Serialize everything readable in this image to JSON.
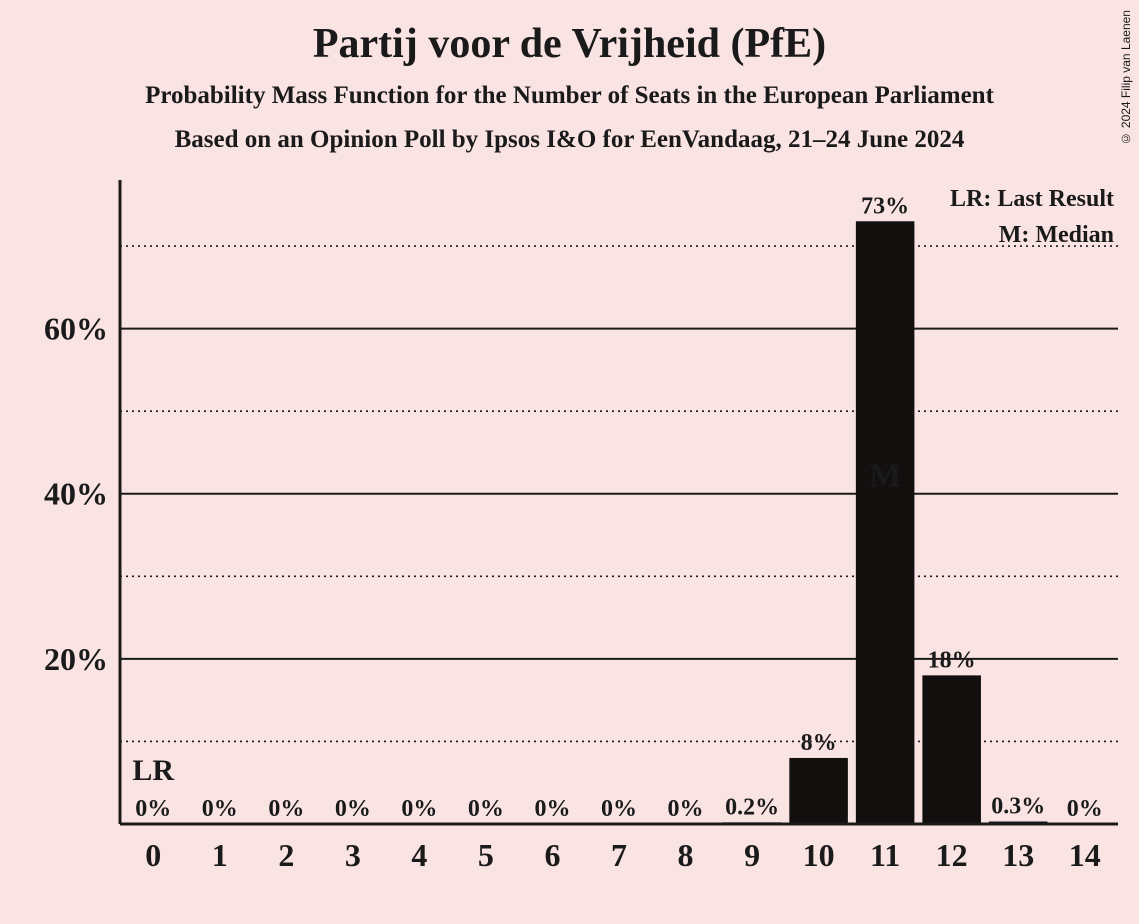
{
  "title": "Partij voor de Vrijheid (PfE)",
  "subtitle1": "Probability Mass Function for the Number of Seats in the European Parliament",
  "subtitle2": "Based on an Opinion Poll by Ipsos I&O for EenVandaag, 21–24 June 2024",
  "copyright": "© 2024 Filip van Laenen",
  "legend": {
    "lr": "LR: Last Result",
    "m": "M: Median"
  },
  "chart": {
    "type": "bar",
    "background_color": "#fae3e3",
    "bar_color": "#120f0e",
    "axis_color": "#1a1a1a",
    "gridline_color": "#1a1a1a",
    "median_text_color": "#fae3e3",
    "axis_width": 3,
    "major_grid_width": 2,
    "minor_grid_dash": "2,4",
    "x_categories": [
      "0",
      "1",
      "2",
      "3",
      "4",
      "5",
      "6",
      "7",
      "8",
      "9",
      "10",
      "11",
      "12",
      "13",
      "14"
    ],
    "values": [
      0,
      0,
      0,
      0,
      0,
      0,
      0,
      0,
      0,
      0.2,
      8,
      73,
      18,
      0.3,
      0
    ],
    "bar_labels": [
      "0%",
      "0%",
      "0%",
      "0%",
      "0%",
      "0%",
      "0%",
      "0%",
      "0%",
      "0.2%",
      "8%",
      "73%",
      "18%",
      "0.3%",
      "0%"
    ],
    "lr_index": 0,
    "lr_marker": "LR",
    "median_index": 11,
    "median_marker": "M",
    "y_major_ticks": [
      20,
      40,
      60
    ],
    "y_minor_ticks": [
      10,
      30,
      50,
      70
    ],
    "y_tick_labels": [
      "20%",
      "40%",
      "60%"
    ],
    "ylim": [
      0,
      78
    ],
    "bar_width_ratio": 0.88,
    "title_fontsize": 42,
    "subtitle_fontsize": 25,
    "axis_label_fontsize": 32,
    "bar_label_fontsize": 24,
    "legend_fontsize": 24,
    "median_marker_fontsize": 34,
    "lr_marker_fontsize": 30
  }
}
